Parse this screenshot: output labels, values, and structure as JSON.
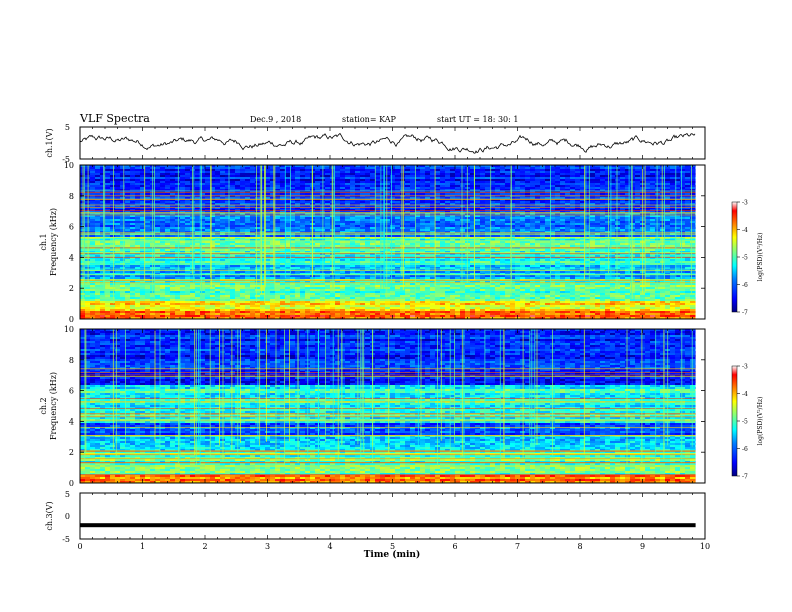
{
  "header": {
    "title": "VLF Spectra",
    "date": "Dec.9 , 2018",
    "station": "station= KAP",
    "start": "start UT = 18: 30: 1"
  },
  "colors": {
    "axis": "#000000",
    "colormap": [
      "#000080",
      "#0000ff",
      "#0080ff",
      "#00ffff",
      "#80ff80",
      "#ffff00",
      "#ff8000",
      "#ff0000",
      "#ffffff"
    ]
  },
  "colorbar": {
    "label": "log(PSD)(V²/Hz)",
    "ticks": [
      "-3",
      "-4",
      "-5",
      "-6",
      "-7"
    ],
    "range": [
      -7,
      -3
    ]
  },
  "chart_data": [
    {
      "type": "line",
      "name": "ch1-waveform",
      "ylabel": "ch.1(V)",
      "yticks": [
        "5",
        "-5"
      ],
      "ylim": [
        -5,
        5
      ],
      "xlim": [
        0,
        9.85
      ],
      "trend": "noisy waveform fluctuating roughly between -3 and +3 V across 0–9.85 min"
    },
    {
      "type": "heatmap",
      "name": "ch1-spectrogram",
      "ylabel": "ch.1\nFrequency (kHz)",
      "ylabel_line1": "ch.1",
      "ylabel_line2": "Frequency (kHz)",
      "yticks": [
        "0",
        "2",
        "4",
        "6",
        "8",
        "10"
      ],
      "ylim": [
        0,
        10
      ],
      "xlim": [
        0,
        9.85
      ],
      "zlim": [
        -7,
        -3
      ],
      "band_levels": [
        {
          "f_lo": 0.0,
          "f_hi": 0.6,
          "level": -3.6
        },
        {
          "f_lo": 0.6,
          "f_hi": 1.2,
          "level": -4.3
        },
        {
          "f_lo": 1.2,
          "f_hi": 2.6,
          "level": -5.0
        },
        {
          "f_lo": 2.6,
          "f_hi": 3.6,
          "level": -5.6
        },
        {
          "f_lo": 3.6,
          "f_hi": 5.4,
          "level": -5.1
        },
        {
          "f_lo": 5.4,
          "f_hi": 7.0,
          "level": -5.9
        },
        {
          "f_lo": 7.0,
          "f_hi": 10.0,
          "level": -6.3
        }
      ]
    },
    {
      "type": "heatmap",
      "name": "ch2-spectrogram",
      "ylabel": "ch.2\nFrequency (kHz)",
      "ylabel_line1": "ch.2",
      "ylabel_line2": "Frequency (kHz)",
      "yticks": [
        "0",
        "2",
        "4",
        "6",
        "8",
        "10"
      ],
      "ylim": [
        0,
        10
      ],
      "xlim": [
        0,
        9.85
      ],
      "zlim": [
        -7,
        -3
      ],
      "band_levels": [
        {
          "f_lo": 0.0,
          "f_hi": 0.6,
          "level": -3.8
        },
        {
          "f_lo": 0.6,
          "f_hi": 2.2,
          "level": -5.0
        },
        {
          "f_lo": 2.2,
          "f_hi": 3.2,
          "level": -5.5
        },
        {
          "f_lo": 3.2,
          "f_hi": 4.0,
          "level": -6.0
        },
        {
          "f_lo": 4.0,
          "f_hi": 6.4,
          "level": -5.2
        },
        {
          "f_lo": 6.4,
          "f_hi": 10.0,
          "level": -6.3
        }
      ]
    },
    {
      "type": "line",
      "name": "ch3-waveform",
      "ylabel": "ch.3(V)",
      "yticks": [
        "5",
        "0",
        "-5"
      ],
      "ylim": [
        -5,
        5
      ],
      "xlim": [
        0,
        9.85
      ],
      "constant_value": -2.0
    }
  ],
  "x_axis": {
    "label": "Time (min)",
    "ticks": [
      "0",
      "1",
      "2",
      "3",
      "4",
      "5",
      "6",
      "7",
      "8",
      "9",
      "10"
    ],
    "range": [
      0,
      10
    ]
  }
}
